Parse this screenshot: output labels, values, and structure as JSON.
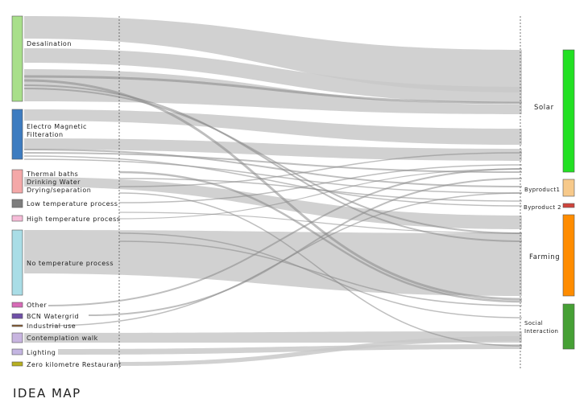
{
  "title": "IDEA MAP",
  "left_nodes": [
    {
      "id": "desalination",
      "lines": [
        "Desalination"
      ],
      "color": "#a8df8a"
    },
    {
      "id": "emf",
      "lines": [
        "Electro Magnetic",
        "Filteration"
      ],
      "color": "#3d7cc0"
    },
    {
      "id": "thermal",
      "lines": [
        "Thermal baths",
        "Drinking Water",
        "Drying/separation"
      ],
      "color": "#f4a8a8"
    },
    {
      "id": "low",
      "lines": [
        "Low temperature process"
      ],
      "color": "#7d7d7d"
    },
    {
      "id": "high",
      "lines": [
        "High temperature process"
      ],
      "color": "#f6bcd8"
    },
    {
      "id": "none",
      "lines": [
        "No temperature process"
      ],
      "color": "#a9dde6"
    },
    {
      "id": "other",
      "lines": [
        "Other"
      ],
      "color": "#d86bb7"
    },
    {
      "id": "bcn",
      "lines": [
        "BCN Watergrid"
      ],
      "color": "#7050a8"
    },
    {
      "id": "industrial",
      "lines": [
        "Industrial use"
      ],
      "color": "#8b5a2b"
    },
    {
      "id": "walk",
      "lines": [
        "Contemplation walk"
      ],
      "color": "#c8b5e0"
    },
    {
      "id": "lighting",
      "lines": [
        "Lighting"
      ],
      "color": "#c4b6e2"
    },
    {
      "id": "zero",
      "lines": [
        "Zero kilometre Restaurant"
      ],
      "color": "#b8b020"
    }
  ],
  "right_nodes": [
    {
      "id": "solar",
      "lines": [
        "Solar"
      ],
      "color": "#22e022"
    },
    {
      "id": "byp1",
      "lines": [
        "Byproduct1"
      ],
      "color": "#f7c98a"
    },
    {
      "id": "byp2",
      "lines": [
        "Byproduct 2"
      ],
      "color": "#d0443c"
    },
    {
      "id": "farming",
      "lines": [
        "Farming"
      ],
      "color": "#ff8c00"
    },
    {
      "id": "social",
      "lines": [
        "Social",
        "Interaction"
      ],
      "color": "#46a035"
    }
  ]
}
